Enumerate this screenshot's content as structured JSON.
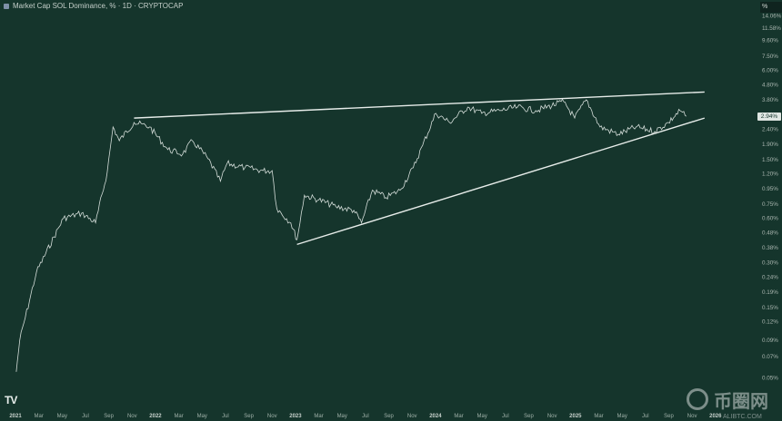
{
  "header": {
    "title": "Market Cap SOL Dominance, % · 1D · CRYPTOCAP"
  },
  "axis": {
    "unit_label": "%",
    "current_value_label": "2.94%"
  },
  "watermark": {
    "text": "币圈网",
    "url": "ALIBTC.COM"
  },
  "logo": {
    "text": "TV"
  },
  "colors": {
    "background": "#15352c",
    "price_line": "#e8eeeb",
    "trendline": "#e6ece9"
  },
  "chart_data": {
    "type": "line",
    "title": "Market Cap SOL Dominance, % · 1D · CRYPTOCAP",
    "y_scale": "log",
    "ylim": [
      0.05,
      14.06
    ],
    "grid": false,
    "y_ticks": [
      "14.06%",
      "11.58%",
      "9.60%",
      "7.50%",
      "6.00%",
      "4.80%",
      "3.80%",
      "2.40%",
      "1.90%",
      "1.50%",
      "1.20%",
      "0.95%",
      "0.75%",
      "0.60%",
      "0.48%",
      "0.38%",
      "0.30%",
      "0.24%",
      "0.19%",
      "0.15%",
      "0.12%",
      "0.09%",
      "0.07%",
      "0.05%"
    ],
    "y_tick_values": [
      14.06,
      11.58,
      9.6,
      7.5,
      6.0,
      4.8,
      3.8,
      2.4,
      1.9,
      1.5,
      1.2,
      0.95,
      0.75,
      0.6,
      0.48,
      0.38,
      0.3,
      0.24,
      0.19,
      0.15,
      0.12,
      0.09,
      0.07,
      0.05
    ],
    "x_ticks": [
      {
        "label": "2021",
        "date": "2021-01-01",
        "year": true
      },
      {
        "label": "Mar",
        "date": "2021-03-01"
      },
      {
        "label": "May",
        "date": "2021-05-01"
      },
      {
        "label": "Jul",
        "date": "2021-07-01"
      },
      {
        "label": "Sep",
        "date": "2021-09-01"
      },
      {
        "label": "Nov",
        "date": "2021-11-01"
      },
      {
        "label": "2022",
        "date": "2022-01-01",
        "year": true
      },
      {
        "label": "Mar",
        "date": "2022-03-01"
      },
      {
        "label": "May",
        "date": "2022-05-01"
      },
      {
        "label": "Jul",
        "date": "2022-07-01"
      },
      {
        "label": "Sep",
        "date": "2022-09-01"
      },
      {
        "label": "Nov",
        "date": "2022-11-01"
      },
      {
        "label": "2023",
        "date": "2023-01-01",
        "year": true
      },
      {
        "label": "Mar",
        "date": "2023-03-01"
      },
      {
        "label": "May",
        "date": "2023-05-01"
      },
      {
        "label": "Jul",
        "date": "2023-07-01"
      },
      {
        "label": "Sep",
        "date": "2023-09-01"
      },
      {
        "label": "Nov",
        "date": "2023-11-01"
      },
      {
        "label": "2024",
        "date": "2024-01-01",
        "year": true
      },
      {
        "label": "Mar",
        "date": "2024-03-01"
      },
      {
        "label": "May",
        "date": "2024-05-01"
      },
      {
        "label": "Jul",
        "date": "2024-07-01"
      },
      {
        "label": "Sep",
        "date": "2024-09-01"
      },
      {
        "label": "Nov",
        "date": "2024-11-01"
      },
      {
        "label": "2025",
        "date": "2025-01-01",
        "year": true
      },
      {
        "label": "Mar",
        "date": "2025-03-01"
      },
      {
        "label": "May",
        "date": "2025-05-01"
      },
      {
        "label": "Jul",
        "date": "2025-07-01"
      },
      {
        "label": "Sep",
        "date": "2025-09-01"
      },
      {
        "label": "Nov",
        "date": "2025-11-01"
      },
      {
        "label": "2026",
        "date": "2026-01-01",
        "year": true
      }
    ],
    "series": [
      {
        "points": [
          [
            "2021-01-03",
            0.055
          ],
          [
            "2021-01-12",
            0.09
          ],
          [
            "2021-02-25",
            0.26
          ],
          [
            "2021-05-04",
            0.6
          ],
          [
            "2021-06-21",
            0.65
          ],
          [
            "2021-07-27",
            0.56
          ],
          [
            "2021-08-27",
            1.23
          ],
          [
            "2021-09-12",
            2.49
          ],
          [
            "2021-09-28",
            2.01
          ],
          [
            "2021-11-06",
            2.67
          ],
          [
            "2021-12-16",
            2.49
          ],
          [
            "2022-02-03",
            1.75
          ],
          [
            "2022-03-11",
            1.63
          ],
          [
            "2022-04-06",
            2.01
          ],
          [
            "2022-05-16",
            1.52
          ],
          [
            "2022-06-18",
            1.07
          ],
          [
            "2022-07-05",
            1.41
          ],
          [
            "2022-08-21",
            1.32
          ],
          [
            "2022-10-08",
            1.26
          ],
          [
            "2022-11-01",
            1.26
          ],
          [
            "2022-11-13",
            0.7
          ],
          [
            "2022-12-19",
            0.56
          ],
          [
            "2023-01-05",
            0.43
          ],
          [
            "2023-01-24",
            0.86
          ],
          [
            "2023-03-01",
            0.8
          ],
          [
            "2023-04-15",
            0.72
          ],
          [
            "2023-06-01",
            0.68
          ],
          [
            "2023-06-21",
            0.56
          ],
          [
            "2023-07-19",
            0.93
          ],
          [
            "2023-08-24",
            0.83
          ],
          [
            "2023-09-30",
            0.93
          ],
          [
            "2023-11-04",
            1.32
          ],
          [
            "2023-11-28",
            1.87
          ],
          [
            "2024-01-02",
            3.08
          ],
          [
            "2024-02-07",
            2.67
          ],
          [
            "2024-03-24",
            3.39
          ],
          [
            "2024-04-30",
            3.08
          ],
          [
            "2024-06-16",
            3.21
          ],
          [
            "2024-08-02",
            3.39
          ],
          [
            "2024-09-19",
            3.21
          ],
          [
            "2024-12-01",
            3.69
          ],
          [
            "2024-12-29",
            2.86
          ],
          [
            "2025-01-29",
            3.8
          ],
          [
            "2025-03-04",
            2.49
          ],
          [
            "2025-04-21",
            2.22
          ],
          [
            "2025-06-07",
            2.49
          ],
          [
            "2025-07-25",
            2.32
          ],
          [
            "2025-08-30",
            2.67
          ],
          [
            "2025-09-30",
            3.21
          ],
          [
            "2025-10-16",
            2.94
          ]
        ]
      }
    ],
    "trendlines": [
      {
        "from": [
          "2021-11-06",
          2.86
        ],
        "to": [
          "2025-12-03",
          4.29
        ]
      },
      {
        "from": [
          "2023-01-05",
          0.4
        ],
        "to": [
          "2025-12-03",
          2.86
        ]
      }
    ]
  }
}
